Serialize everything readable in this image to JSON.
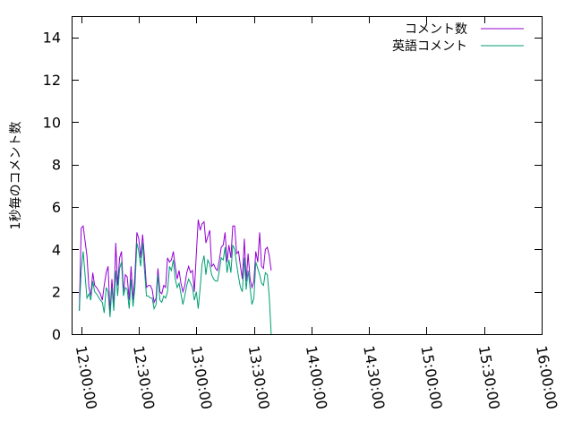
{
  "chart_data": {
    "type": "line",
    "title": "",
    "xlabel": "",
    "ylabel": "1秒毎のコメント数",
    "ylim": [
      0,
      15
    ],
    "yticks": [
      0,
      2,
      4,
      6,
      8,
      10,
      12,
      14
    ],
    "xlim_minutes": [
      715,
      960
    ],
    "xticks": [
      {
        "label": "12:00:00",
        "minute": 720
      },
      {
        "label": "12:30:00",
        "minute": 750
      },
      {
        "label": "13:00:00",
        "minute": 780
      },
      {
        "label": "13:30:00",
        "minute": 810
      },
      {
        "label": "14:00:00",
        "minute": 840
      },
      {
        "label": "14:30:00",
        "minute": 870
      },
      {
        "label": "15:00:00",
        "minute": 900
      },
      {
        "label": "15:30:00",
        "minute": 930
      },
      {
        "label": "16:00:00",
        "minute": 960
      }
    ],
    "grid": false,
    "legend_position": "top-right",
    "series": [
      {
        "name": "コメント数",
        "color": "#9400d3",
        "points": [
          [
            "11:59",
            1.1
          ],
          [
            "12:00",
            5.0
          ],
          [
            "12:01",
            5.1
          ],
          [
            "12:03",
            3.7
          ],
          [
            "12:04",
            2.2
          ],
          [
            "12:05",
            1.8
          ],
          [
            "12:06",
            2.9
          ],
          [
            "12:07",
            2.3
          ],
          [
            "12:08",
            2.2
          ],
          [
            "12:10",
            1.9
          ],
          [
            "12:11",
            1.6
          ],
          [
            "12:12",
            2.3
          ],
          [
            "12:13",
            2.9
          ],
          [
            "12:14",
            3.2
          ],
          [
            "12:15",
            1.0
          ],
          [
            "12:16",
            2.6
          ],
          [
            "12:17",
            1.3
          ],
          [
            "12:18",
            4.3
          ],
          [
            "12:19",
            2.3
          ],
          [
            "12:20",
            3.6
          ],
          [
            "12:21",
            3.9
          ],
          [
            "12:22",
            2.0
          ],
          [
            "12:23",
            2.8
          ],
          [
            "12:24",
            2.7
          ],
          [
            "12:25",
            1.6
          ],
          [
            "12:26",
            3.2
          ],
          [
            "12:27",
            1.6
          ],
          [
            "12:28",
            2.8
          ],
          [
            "12:29",
            4.8
          ],
          [
            "12:30",
            4.5
          ],
          [
            "12:31",
            3.6
          ],
          [
            "12:32",
            4.7
          ],
          [
            "12:33",
            3.6
          ],
          [
            "12:34",
            2.2
          ],
          [
            "12:35",
            2.3
          ],
          [
            "12:36",
            2.3
          ],
          [
            "12:37",
            2.1
          ],
          [
            "12:38",
            1.5
          ],
          [
            "12:39",
            1.7
          ],
          [
            "12:40",
            3.1
          ],
          [
            "12:41",
            2.0
          ],
          [
            "12:42",
            1.9
          ],
          [
            "12:43",
            2.3
          ],
          [
            "12:44",
            2.2
          ],
          [
            "12:45",
            3.6
          ],
          [
            "12:46",
            3.4
          ],
          [
            "12:47",
            3.5
          ],
          [
            "12:48",
            3.9
          ],
          [
            "12:49",
            3.2
          ],
          [
            "12:50",
            2.6
          ],
          [
            "12:51",
            3.0
          ],
          [
            "12:52",
            2.4
          ],
          [
            "12:53",
            2.0
          ],
          [
            "12:54",
            2.3
          ],
          [
            "12:55",
            2.9
          ],
          [
            "12:56",
            3.2
          ],
          [
            "12:57",
            2.9
          ],
          [
            "12:58",
            3.0
          ],
          [
            "12:59",
            2.0
          ],
          [
            "13:00",
            3.8
          ],
          [
            "13:01",
            5.4
          ],
          [
            "13:02",
            4.9
          ],
          [
            "13:03",
            5.2
          ],
          [
            "13:04",
            5.3
          ],
          [
            "13:05",
            4.3
          ],
          [
            "13:06",
            4.6
          ],
          [
            "13:07",
            4.9
          ],
          [
            "13:08",
            3.2
          ],
          [
            "13:09",
            3.3
          ],
          [
            "13:10",
            3.1
          ],
          [
            "13:11",
            3.0
          ],
          [
            "13:12",
            3.5
          ],
          [
            "13:13",
            4.1
          ],
          [
            "13:14",
            4.2
          ],
          [
            "13:15",
            4.8
          ],
          [
            "13:16",
            3.4
          ],
          [
            "13:17",
            4.2
          ],
          [
            "13:18",
            3.6
          ],
          [
            "13:19",
            5.1
          ],
          [
            "13:20",
            5.1
          ],
          [
            "13:21",
            3.8
          ],
          [
            "13:22",
            3.9
          ],
          [
            "13:23",
            3.2
          ],
          [
            "13:24",
            2.6
          ],
          [
            "13:25",
            4.5
          ],
          [
            "13:26",
            2.5
          ],
          [
            "13:27",
            3.8
          ],
          [
            "13:28",
            2.6
          ],
          [
            "13:29",
            2.2
          ],
          [
            "13:30",
            2.5
          ],
          [
            "13:31",
            3.9
          ],
          [
            "13:32",
            3.4
          ],
          [
            "13:33",
            4.8
          ],
          [
            "13:34",
            3.2
          ],
          [
            "13:35",
            3.1
          ],
          [
            "13:36",
            4.0
          ],
          [
            "13:37",
            4.1
          ],
          [
            "13:38",
            3.7
          ],
          [
            "13:39",
            3.0
          ]
        ]
      },
      {
        "name": "英語コメント",
        "color": "#009e73",
        "points": [
          [
            "11:59",
            1.1
          ],
          [
            "12:00",
            3.0
          ],
          [
            "12:01",
            3.9
          ],
          [
            "12:03",
            1.7
          ],
          [
            "12:04",
            1.9
          ],
          [
            "12:05",
            1.6
          ],
          [
            "12:06",
            2.5
          ],
          [
            "12:07",
            2.0
          ],
          [
            "12:08",
            1.9
          ],
          [
            "12:10",
            1.6
          ],
          [
            "12:11",
            1.5
          ],
          [
            "12:12",
            1.0
          ],
          [
            "12:13",
            2.2
          ],
          [
            "12:14",
            2.0
          ],
          [
            "12:15",
            0.8
          ],
          [
            "12:16",
            2.2
          ],
          [
            "12:17",
            1.1
          ],
          [
            "12:18",
            3.0
          ],
          [
            "12:19",
            1.8
          ],
          [
            "12:20",
            3.1
          ],
          [
            "12:21",
            3.4
          ],
          [
            "12:22",
            1.8
          ],
          [
            "12:23",
            2.2
          ],
          [
            "12:24",
            2.1
          ],
          [
            "12:25",
            1.2
          ],
          [
            "12:26",
            2.6
          ],
          [
            "12:27",
            1.3
          ],
          [
            "12:28",
            2.2
          ],
          [
            "12:29",
            4.3
          ],
          [
            "12:30",
            3.9
          ],
          [
            "12:31",
            3.2
          ],
          [
            "12:32",
            4.3
          ],
          [
            "12:33",
            3.0
          ],
          [
            "12:34",
            1.8
          ],
          [
            "12:35",
            1.8
          ],
          [
            "12:36",
            1.7
          ],
          [
            "12:37",
            1.7
          ],
          [
            "12:38",
            1.2
          ],
          [
            "12:39",
            1.4
          ],
          [
            "12:40",
            2.8
          ],
          [
            "12:41",
            1.6
          ],
          [
            "12:42",
            1.5
          ],
          [
            "12:43",
            1.8
          ],
          [
            "12:44",
            1.7
          ],
          [
            "12:45",
            2.0
          ],
          [
            "12:46",
            3.2
          ],
          [
            "12:47",
            3.0
          ],
          [
            "12:48",
            3.5
          ],
          [
            "12:49",
            2.6
          ],
          [
            "12:50",
            2.2
          ],
          [
            "12:51",
            2.4
          ],
          [
            "12:52",
            1.9
          ],
          [
            "12:53",
            1.4
          ],
          [
            "12:54",
            1.8
          ],
          [
            "12:55",
            2.3
          ],
          [
            "12:56",
            2.6
          ],
          [
            "12:57",
            2.4
          ],
          [
            "12:58",
            2.2
          ],
          [
            "12:59",
            1.6
          ],
          [
            "13:00",
            2.0
          ],
          [
            "13:01",
            1.2
          ],
          [
            "13:02",
            2.2
          ],
          [
            "13:03",
            3.3
          ],
          [
            "13:04",
            3.7
          ],
          [
            "13:05",
            2.8
          ],
          [
            "13:06",
            3.5
          ],
          [
            "13:07",
            3.3
          ],
          [
            "13:08",
            2.8
          ],
          [
            "13:09",
            2.6
          ],
          [
            "13:10",
            2.5
          ],
          [
            "13:11",
            2.5
          ],
          [
            "13:12",
            3.0
          ],
          [
            "13:13",
            3.6
          ],
          [
            "13:14",
            3.5
          ],
          [
            "13:15",
            4.1
          ],
          [
            "13:16",
            2.9
          ],
          [
            "13:17",
            3.5
          ],
          [
            "13:18",
            2.9
          ],
          [
            "13:19",
            4.2
          ],
          [
            "13:20",
            4.0
          ],
          [
            "13:21",
            3.3
          ],
          [
            "13:22",
            2.7
          ],
          [
            "13:23",
            2.2
          ],
          [
            "13:24",
            2.0
          ],
          [
            "13:25",
            3.6
          ],
          [
            "13:26",
            2.1
          ],
          [
            "13:27",
            3.0
          ],
          [
            "13:28",
            2.2
          ],
          [
            "13:29",
            1.4
          ],
          [
            "13:30",
            1.7
          ],
          [
            "13:31",
            3.4
          ],
          [
            "13:32",
            3.1
          ],
          [
            "13:33",
            2.8
          ],
          [
            "13:34",
            2.4
          ],
          [
            "13:35",
            2.3
          ],
          [
            "13:36",
            2.9
          ],
          [
            "13:37",
            2.8
          ],
          [
            "13:38",
            1.8
          ],
          [
            "13:39",
            0.0
          ]
        ]
      }
    ]
  }
}
